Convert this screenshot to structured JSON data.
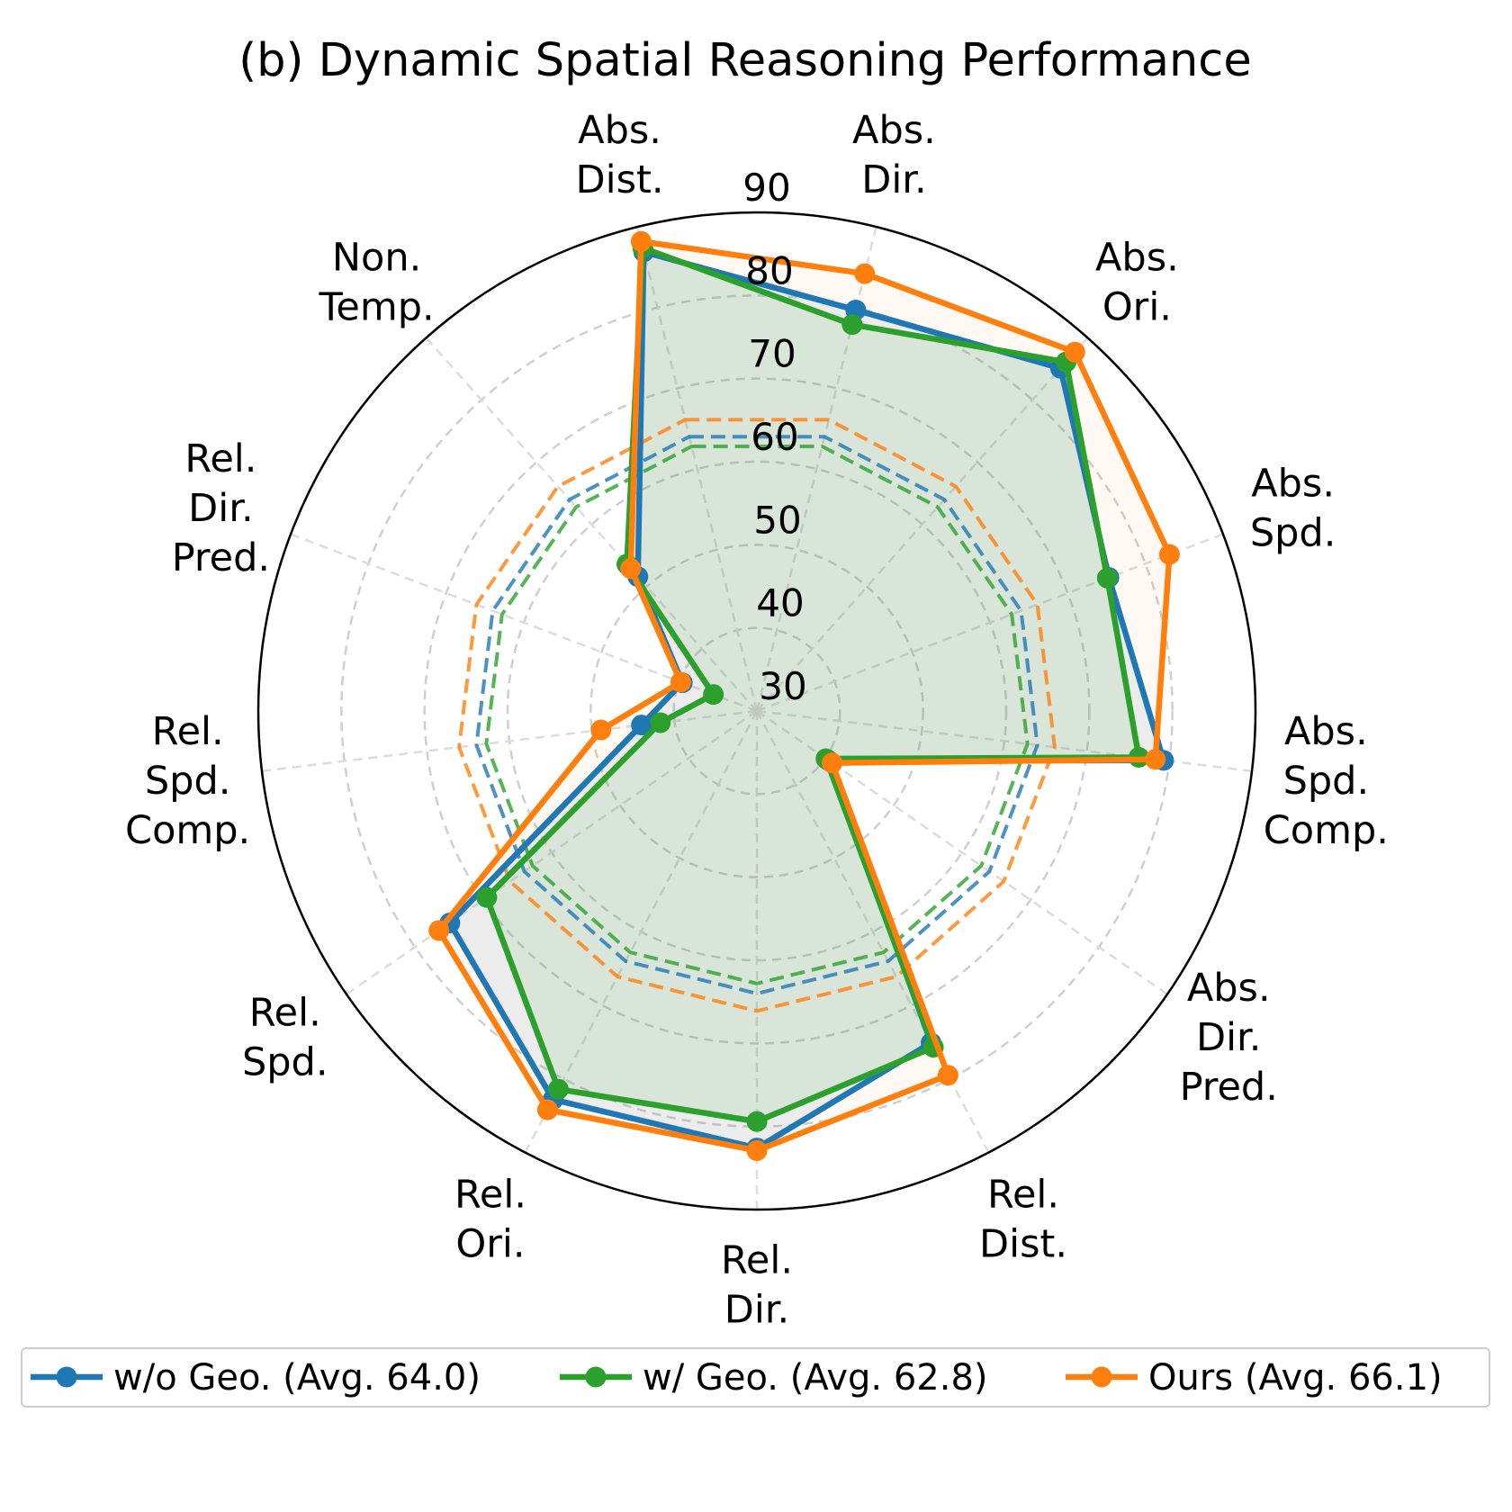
{
  "chart_data": {
    "type": "radar",
    "title": "(b) Dynamic Spatial Reasoning Performance",
    "categories": [
      [
        "Abs.",
        "Dist."
      ],
      [
        "Abs.",
        "Dir."
      ],
      [
        "Abs.",
        "Ori."
      ],
      [
        "Abs.",
        "Spd."
      ],
      [
        "Abs.",
        "Spd.",
        "Comp."
      ],
      [
        "Abs.",
        "Dir.",
        "Pred."
      ],
      [
        "Rel.",
        "Dist."
      ],
      [
        "Rel.",
        "Dir."
      ],
      [
        "Rel.",
        "Ori."
      ],
      [
        "Rel.",
        "Spd."
      ],
      [
        "Rel.",
        "Spd.",
        "Comp."
      ],
      [
        "Rel.",
        "Dir.",
        "Pred."
      ],
      [
        "Non.",
        "Temp."
      ]
    ],
    "rlim": [
      30,
      90
    ],
    "rticks": [
      "30",
      "40",
      "50",
      "60",
      "70",
      "80",
      "90"
    ],
    "grid": true,
    "legend_position": "bottom",
    "series": [
      {
        "name": "w/o Geo. (Avg. 64.0)",
        "color": "#1f77b4",
        "avg": 64.0,
        "values": [
          86.9,
          79.7,
          85.1,
          75.3,
          79.3,
          40.5,
          75.1,
          82.6,
          82.8,
          74.9,
          44.0,
          39.6,
          51.6
        ]
      },
      {
        "name": "w/ Geo. (Avg. 62.8)",
        "color": "#2ca02c",
        "avg": 62.8,
        "values": [
          87.4,
          77.9,
          86.1,
          75.1,
          76.3,
          40.1,
          75.7,
          79.4,
          81.4,
          69.5,
          41.7,
          35.6,
          53.6
        ]
      },
      {
        "name": "Ours (Avg. 66.1)",
        "color": "#ff7f0e",
        "avg": 66.1,
        "values": [
          88.2,
          84.2,
          87.7,
          83.1,
          78.3,
          41.0,
          79.5,
          82.9,
          84.2,
          76.5,
          48.9,
          39.8,
          52.9
        ]
      }
    ]
  }
}
